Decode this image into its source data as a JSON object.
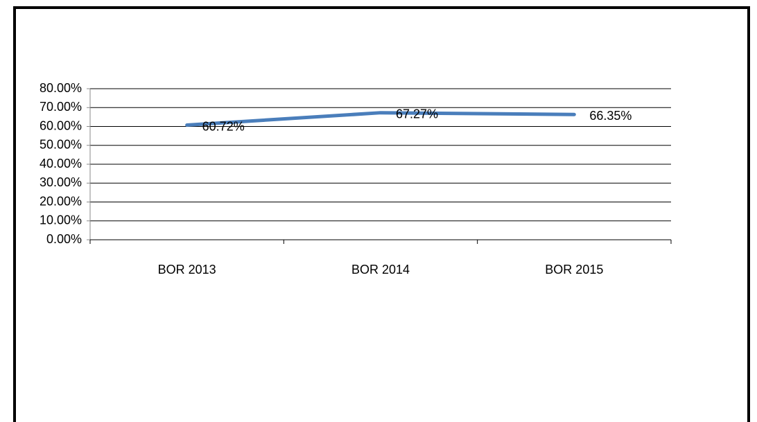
{
  "chart_data": {
    "type": "line",
    "categories": [
      "BOR 2013",
      "BOR 2014",
      "BOR 2015"
    ],
    "series": [
      {
        "color": "#4a7ebb",
        "values": [
          60.72,
          67.27,
          66.35
        ],
        "value_labels": [
          "60.72%",
          "67.27%",
          "66.35%"
        ]
      }
    ],
    "ylim": [
      0,
      80
    ],
    "yticks": [
      {
        "value": 0,
        "label": "0.00%"
      },
      {
        "value": 10,
        "label": "10.00%"
      },
      {
        "value": 20,
        "label": "20.00%"
      },
      {
        "value": 30,
        "label": "30.00%"
      },
      {
        "value": 40,
        "label": "40.00%"
      },
      {
        "value": 50,
        "label": "50.00%"
      },
      {
        "value": 60,
        "label": "60.00%"
      },
      {
        "value": 70,
        "label": "70.00%"
      },
      {
        "value": 80,
        "label": "80.00%"
      }
    ],
    "grid": true
  }
}
